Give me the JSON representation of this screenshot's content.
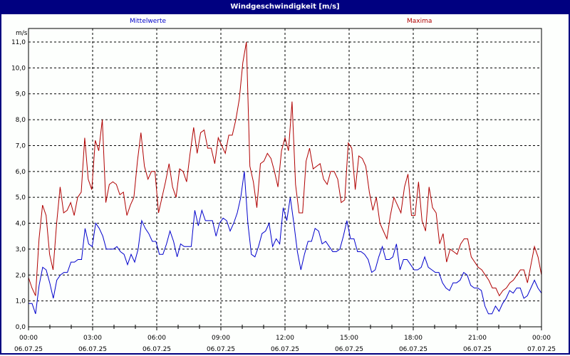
{
  "window": {
    "title": "Windgeschwindigkeit [m/s]"
  },
  "legend": {
    "mean_label": "Mittelwerte",
    "max_label": "Maxima"
  },
  "colors": {
    "title_bg": "#000080",
    "mean": "#0000cc",
    "max": "#b00000",
    "grid": "#000000"
  },
  "chart_data": {
    "type": "line",
    "title": "Windgeschwindigkeit [m/s]",
    "ylabel": "m/s",
    "xlabel": "",
    "ylim": [
      0,
      11
    ],
    "y_ticks": [
      "0,0",
      "1,0",
      "2,0",
      "3,0",
      "4,0",
      "5,0",
      "6,0",
      "7,0",
      "8,0",
      "9,0",
      "10,0",
      "11,0"
    ],
    "x_ticks": [
      {
        "time": "00:00",
        "date": "06.07.25"
      },
      {
        "time": "03:00",
        "date": "06.07.25"
      },
      {
        "time": "06:00",
        "date": "06.07.25"
      },
      {
        "time": "09:00",
        "date": "06.07.25"
      },
      {
        "time": "12:00",
        "date": "06.07.25"
      },
      {
        "time": "15:00",
        "date": "06.07.25"
      },
      {
        "time": "18:00",
        "date": "06.07.25"
      },
      {
        "time": "21:00",
        "date": "06.07.25"
      },
      {
        "time": "00:00",
        "date": "07.07.25"
      }
    ],
    "x_interval_minutes": 10,
    "grid": true,
    "legend_position": "top",
    "series": [
      {
        "name": "Mittelwerte",
        "color": "#0000cc",
        "values": [
          0.9,
          0.9,
          0.5,
          1.6,
          2.3,
          2.2,
          1.7,
          1.1,
          1.8,
          2.0,
          2.1,
          2.1,
          2.5,
          2.5,
          2.6,
          2.6,
          3.8,
          3.2,
          3.1,
          4.0,
          3.8,
          3.5,
          3.0,
          3.0,
          3.0,
          3.1,
          2.9,
          2.8,
          2.4,
          2.8,
          2.5,
          3.0,
          4.1,
          3.8,
          3.6,
          3.3,
          3.3,
          2.8,
          2.8,
          3.2,
          3.7,
          3.3,
          2.7,
          3.2,
          3.1,
          3.1,
          3.1,
          4.5,
          3.9,
          4.5,
          4.1,
          4.1,
          4.1,
          3.5,
          4.0,
          4.2,
          4.1,
          3.7,
          4.0,
          4.4,
          5.0,
          6.0,
          4.0,
          2.8,
          2.7,
          3.1,
          3.6,
          3.7,
          4.0,
          3.1,
          3.4,
          3.2,
          4.6,
          4.1,
          5.0,
          4.0,
          2.9,
          2.2,
          2.8,
          3.3,
          3.3,
          3.8,
          3.7,
          3.2,
          3.3,
          3.1,
          2.9,
          2.9,
          3.0,
          3.5,
          4.1,
          3.4,
          3.4,
          2.9,
          2.9,
          2.8,
          2.6,
          2.1,
          2.2,
          2.7,
          3.1,
          2.6,
          2.6,
          2.7,
          3.2,
          2.2,
          2.6,
          2.6,
          2.4,
          2.2,
          2.2,
          2.3,
          2.7,
          2.3,
          2.2,
          2.1,
          2.1,
          1.7,
          1.5,
          1.4,
          1.7,
          1.7,
          1.8,
          2.1,
          2.0,
          1.6,
          1.5,
          1.5,
          1.4,
          0.8,
          0.5,
          0.5,
          0.8,
          0.6,
          0.9,
          1.1,
          1.4,
          1.3,
          1.5,
          1.5,
          1.1,
          1.2,
          1.5,
          1.8,
          1.5,
          1.3
        ]
      },
      {
        "name": "Maxima",
        "color": "#b00000",
        "values": [
          1.9,
          1.5,
          1.2,
          3.4,
          4.7,
          4.3,
          2.8,
          2.2,
          4.0,
          5.4,
          4.4,
          4.5,
          4.8,
          4.3,
          5.0,
          5.2,
          7.3,
          5.7,
          5.3,
          7.2,
          6.8,
          8.0,
          4.8,
          5.5,
          5.6,
          5.5,
          5.1,
          5.2,
          4.3,
          4.7,
          5.0,
          6.4,
          7.5,
          6.2,
          5.7,
          6.0,
          6.0,
          4.4,
          5.0,
          5.6,
          6.3,
          5.4,
          5.0,
          6.1,
          6.0,
          5.6,
          6.7,
          7.7,
          6.7,
          7.5,
          7.6,
          6.9,
          6.9,
          6.3,
          7.3,
          7.0,
          6.7,
          7.4,
          7.4,
          8.0,
          8.8,
          10.2,
          11.0,
          6.2,
          5.6,
          4.6,
          6.3,
          6.4,
          6.7,
          6.5,
          6.0,
          5.4,
          6.8,
          7.3,
          6.8,
          8.7,
          5.5,
          4.4,
          4.4,
          6.4,
          6.9,
          6.1,
          6.2,
          6.3,
          5.7,
          5.5,
          6.0,
          6.0,
          5.7,
          4.8,
          4.9,
          7.1,
          6.9,
          5.3,
          6.6,
          6.5,
          6.2,
          5.2,
          4.5,
          5.0,
          4.0,
          3.7,
          3.4,
          4.3,
          5.0,
          4.7,
          4.4,
          5.4,
          5.9,
          4.3,
          4.3,
          5.6,
          4.1,
          3.7,
          5.4,
          4.6,
          4.4,
          3.2,
          3.6,
          2.5,
          3.0,
          2.9,
          2.8,
          3.2,
          3.4,
          3.4,
          2.7,
          2.5,
          2.3,
          2.2,
          2.0,
          1.8,
          1.5,
          1.5,
          1.2,
          1.4,
          1.5,
          1.7,
          1.8,
          2.0,
          2.2,
          2.2,
          1.7,
          2.4,
          3.1,
          2.7,
          2.0
        ]
      }
    ]
  }
}
